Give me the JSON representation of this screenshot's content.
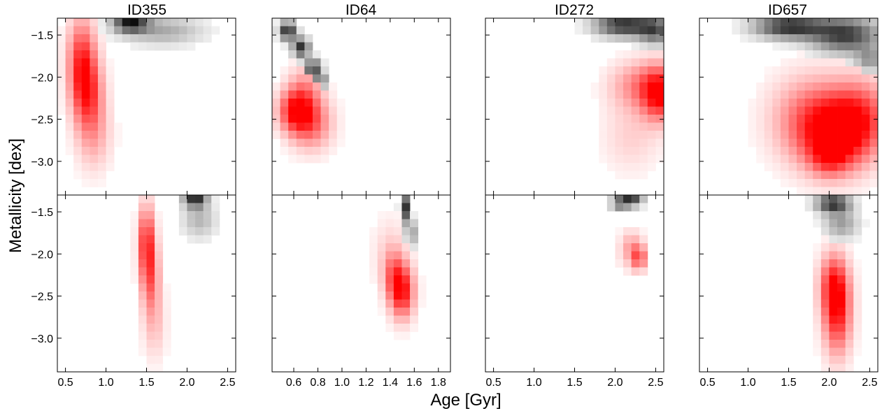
{
  "chart_data": {
    "type": "heatmap",
    "xlabel": "Age [Gyr]",
    "ylabel": "Metallicity [dex]",
    "ylim": [
      -3.4,
      -1.3
    ],
    "y_ticks": [
      -1.5,
      -2.0,
      -2.5,
      -3.0
    ],
    "y_tick_labels": [
      "−1.5",
      "−2.0",
      "−2.5",
      "−3.0"
    ],
    "layout": "2 rows x 4 columns, shared y axis, tick marks inward",
    "colors": {
      "primary_map": "#ff0000",
      "secondary_map": "#000000"
    },
    "panels": [
      {
        "title": "ID355",
        "xlim": [
          0.4,
          2.6
        ],
        "x_ticks": [
          0.5,
          1.0,
          1.5,
          2.0,
          2.5
        ],
        "x_tick_labels": [
          "0.5",
          "1.0",
          "1.5",
          "2.0",
          "2.5"
        ],
        "top": {
          "red_peaks": [
            {
              "age": 0.7,
              "feh": -1.8,
              "sa": 0.12,
              "sf": 0.35,
              "amp": 0.75
            },
            {
              "age": 0.78,
              "feh": -2.2,
              "sa": 0.13,
              "sf": 0.3,
              "amp": 0.65
            },
            {
              "age": 0.85,
              "feh": -2.7,
              "sa": 0.15,
              "sf": 0.3,
              "amp": 0.3
            }
          ],
          "black_peaks": [
            {
              "age": 1.3,
              "feh": -1.35,
              "sa": 0.15,
              "sf": 0.08,
              "amp": 0.9
            },
            {
              "age": 1.7,
              "feh": -1.45,
              "sa": 0.35,
              "sf": 0.12,
              "amp": 0.35
            }
          ]
        },
        "bottom": {
          "red_peaks": [
            {
              "age": 1.5,
              "feh": -1.85,
              "sa": 0.07,
              "sf": 0.3,
              "amp": 0.8
            },
            {
              "age": 1.55,
              "feh": -2.3,
              "sa": 0.08,
              "sf": 0.3,
              "amp": 0.5
            },
            {
              "age": 1.6,
              "feh": -2.85,
              "sa": 0.1,
              "sf": 0.3,
              "amp": 0.22
            }
          ],
          "black_peaks": [
            {
              "age": 2.1,
              "feh": -1.33,
              "sa": 0.1,
              "sf": 0.08,
              "amp": 0.9
            },
            {
              "age": 2.15,
              "feh": -1.6,
              "sa": 0.15,
              "sf": 0.15,
              "amp": 0.3
            }
          ]
        }
      },
      {
        "title": "ID64",
        "xlim": [
          0.42,
          1.9
        ],
        "x_ticks": [
          0.6,
          0.8,
          1.0,
          1.2,
          1.4,
          1.6,
          1.8
        ],
        "x_tick_labels": [
          "0.6",
          "0.8",
          "1.0",
          "1.2",
          "1.4",
          "1.6",
          "1.8"
        ],
        "top": {
          "red_peaks": [
            {
              "age": 0.62,
              "feh": -2.4,
              "sa": 0.1,
              "sf": 0.18,
              "amp": 0.9
            },
            {
              "age": 0.75,
              "feh": -2.55,
              "sa": 0.12,
              "sf": 0.22,
              "amp": 0.55
            },
            {
              "age": 0.7,
              "feh": -2.1,
              "sa": 0.1,
              "sf": 0.2,
              "amp": 0.3
            }
          ],
          "black_peaks": [
            {
              "age": 0.55,
              "feh": -1.45,
              "sa": 0.05,
              "sf": 0.08,
              "amp": 0.9
            },
            {
              "age": 0.66,
              "feh": -1.65,
              "sa": 0.05,
              "sf": 0.08,
              "amp": 0.85
            },
            {
              "age": 0.76,
              "feh": -1.9,
              "sa": 0.05,
              "sf": 0.08,
              "amp": 0.8
            },
            {
              "age": 0.83,
              "feh": -2.05,
              "sa": 0.04,
              "sf": 0.06,
              "amp": 0.5
            }
          ]
        },
        "bottom": {
          "red_peaks": [
            {
              "age": 1.5,
              "feh": -2.45,
              "sa": 0.07,
              "sf": 0.22,
              "amp": 0.9
            },
            {
              "age": 1.43,
              "feh": -2.25,
              "sa": 0.06,
              "sf": 0.2,
              "amp": 0.4
            },
            {
              "age": 1.4,
              "feh": -2.0,
              "sa": 0.1,
              "sf": 0.3,
              "amp": 0.18
            }
          ],
          "black_peaks": [
            {
              "age": 1.52,
              "feh": -1.45,
              "sa": 0.025,
              "sf": 0.12,
              "amp": 0.9
            },
            {
              "age": 1.57,
              "feh": -1.75,
              "sa": 0.025,
              "sf": 0.12,
              "amp": 0.6
            }
          ]
        }
      },
      {
        "title": "ID272",
        "xlim": [
          0.4,
          2.6
        ],
        "x_ticks": [
          0.5,
          1.0,
          1.5,
          2.0,
          2.5
        ],
        "x_tick_labels": [
          "0.5",
          "1.0",
          "1.5",
          "2.0",
          "2.5"
        ],
        "top": {
          "red_peaks": [
            {
              "age": 2.55,
              "feh": -2.2,
              "sa": 0.15,
              "sf": 0.22,
              "amp": 0.9
            },
            {
              "age": 2.3,
              "feh": -2.1,
              "sa": 0.25,
              "sf": 0.2,
              "amp": 0.45
            },
            {
              "age": 2.2,
              "feh": -2.7,
              "sa": 0.25,
              "sf": 0.3,
              "amp": 0.18
            }
          ],
          "black_peaks": [
            {
              "age": 2.1,
              "feh": -1.38,
              "sa": 0.25,
              "sf": 0.1,
              "amp": 0.85
            },
            {
              "age": 2.5,
              "feh": -1.45,
              "sa": 0.15,
              "sf": 0.12,
              "amp": 0.6
            }
          ]
        },
        "bottom": {
          "red_peaks": [
            {
              "age": 2.3,
              "feh": -2.05,
              "sa": 0.04,
              "sf": 0.1,
              "amp": 0.9
            },
            {
              "age": 2.2,
              "feh": -1.95,
              "sa": 0.1,
              "sf": 0.15,
              "amp": 0.4
            }
          ],
          "black_peaks": [
            {
              "age": 2.2,
              "feh": -1.35,
              "sa": 0.1,
              "sf": 0.06,
              "amp": 0.8
            },
            {
              "age": 2.05,
              "feh": -1.4,
              "sa": 0.08,
              "sf": 0.06,
              "amp": 0.5
            }
          ]
        }
      },
      {
        "title": "ID657",
        "xlim": [
          0.4,
          2.6
        ],
        "x_ticks": [
          0.5,
          1.0,
          1.5,
          2.0,
          2.5
        ],
        "x_tick_labels": [
          "0.5",
          "1.0",
          "1.5",
          "2.0",
          "2.5"
        ],
        "top": {
          "red_peaks": [
            {
              "age": 2.1,
              "feh": -2.7,
              "sa": 0.3,
              "sf": 0.3,
              "amp": 0.85
            },
            {
              "age": 2.0,
              "feh": -2.95,
              "sa": 0.15,
              "sf": 0.15,
              "amp": 0.4
            },
            {
              "age": 1.8,
              "feh": -2.5,
              "sa": 0.35,
              "sf": 0.35,
              "amp": 0.55
            },
            {
              "age": 2.4,
              "feh": -2.45,
              "sa": 0.25,
              "sf": 0.3,
              "amp": 0.55
            }
          ],
          "black_peaks": [
            {
              "age": 1.5,
              "feh": -1.4,
              "sa": 0.3,
              "sf": 0.1,
              "amp": 0.85
            },
            {
              "age": 2.2,
              "feh": -1.5,
              "sa": 0.3,
              "sf": 0.15,
              "amp": 0.8
            },
            {
              "age": 2.5,
              "feh": -1.8,
              "sa": 0.12,
              "sf": 0.1,
              "amp": 0.4
            }
          ]
        },
        "bottom": {
          "red_peaks": [
            {
              "age": 2.1,
              "feh": -2.7,
              "sa": 0.12,
              "sf": 0.35,
              "amp": 0.85
            },
            {
              "age": 2.05,
              "feh": -2.35,
              "sa": 0.12,
              "sf": 0.25,
              "amp": 0.6
            }
          ],
          "black_peaks": [
            {
              "age": 2.05,
              "feh": -1.4,
              "sa": 0.15,
              "sf": 0.08,
              "amp": 0.85
            },
            {
              "age": 2.15,
              "feh": -1.65,
              "sa": 0.15,
              "sf": 0.12,
              "amp": 0.4
            }
          ]
        }
      }
    ]
  }
}
